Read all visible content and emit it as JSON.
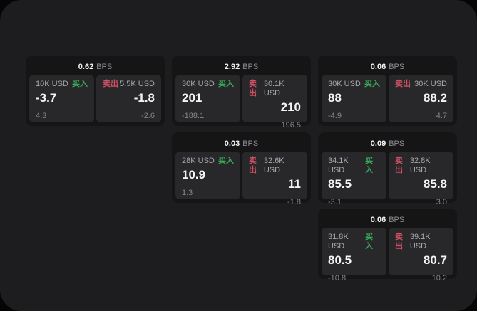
{
  "labels": {
    "bps_unit": "BPS",
    "buy_label": "买入",
    "sell_label": "卖出"
  },
  "colors": {
    "outer_background": "#050505",
    "window_background": "#1d1d1f",
    "card_background": "#151516",
    "tile_background": "#28282a",
    "buy_green": "#37a957",
    "sell_red": "#d15064",
    "value_white": "#f4f4f5",
    "muted_gray": "#8e8e93"
  },
  "cards": [
    {
      "bps": "0.62",
      "buy": {
        "amount": "10K USD",
        "value": "-3.7",
        "delta": "4.3"
      },
      "sell": {
        "amount": "5.5K USD",
        "value": "-1.8",
        "delta": "-2.6"
      }
    },
    {
      "bps": "2.92",
      "buy": {
        "amount": "30K USD",
        "value": "201",
        "delta": "-188.1"
      },
      "sell": {
        "amount": "30.1K USD",
        "value": "210",
        "delta": "196.5"
      }
    },
    {
      "bps": "0.06",
      "buy": {
        "amount": "30K USD",
        "value": "88",
        "delta": "-4.9"
      },
      "sell": {
        "amount": "30K USD",
        "value": "88.2",
        "delta": "4.7"
      }
    },
    {
      "bps": "0.03",
      "buy": {
        "amount": "28K USD",
        "value": "10.9",
        "delta": "1.3"
      },
      "sell": {
        "amount": "32.6K USD",
        "value": "11",
        "delta": "-1.8"
      }
    },
    {
      "bps": "0.09",
      "buy": {
        "amount": "34.1K USD",
        "value": "85.5",
        "delta": "-3.1"
      },
      "sell": {
        "amount": "32.8K USD",
        "value": "85.8",
        "delta": "3.0"
      }
    },
    {
      "bps": "0.06",
      "buy": {
        "amount": "31.8K USD",
        "value": "80.5",
        "delta": "-10.8"
      },
      "sell": {
        "amount": "39.1K USD",
        "value": "80.7",
        "delta": "10.2"
      }
    }
  ]
}
